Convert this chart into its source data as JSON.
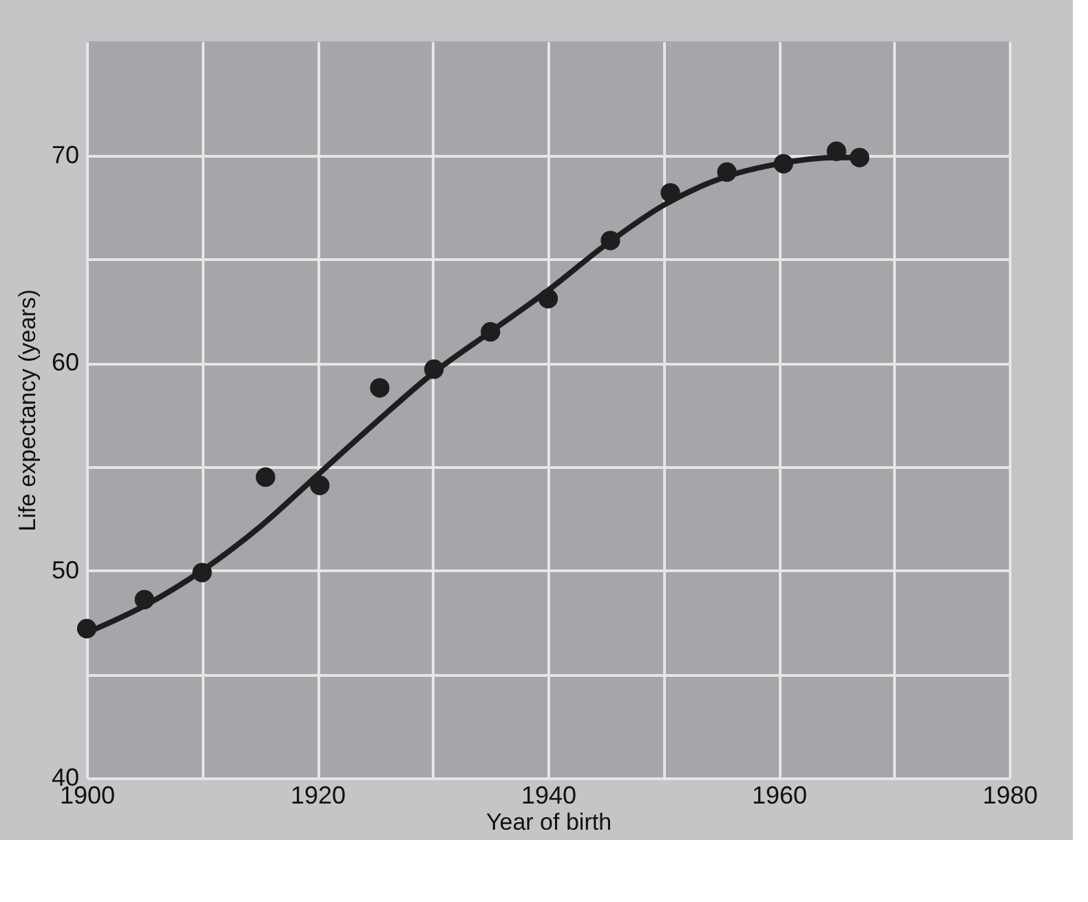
{
  "chart_data": {
    "type": "scatter",
    "xlabel": "Year of birth",
    "ylabel": "Life expectancy (years)",
    "x": [
      1900,
      1905,
      1910,
      1915.5,
      1920.2,
      1925.4,
      1930.1,
      1935,
      1940,
      1945.4,
      1950.6,
      1955.5,
      1960.4,
      1965,
      1967
    ],
    "series": [
      {
        "color": "#1e1e1e",
        "marker": "circle",
        "values": [
          47.2,
          48.6,
          49.9,
          54.5,
          54.1,
          58.8,
          59.7,
          61.5,
          63.1,
          65.9,
          68.2,
          69.2,
          69.6,
          70.2,
          69.9
        ]
      },
      {
        "type": "line",
        "color": "#1e1e1e",
        "line_style": "solid",
        "marker": "none",
        "x": [
          1900,
          1905,
          1910,
          1915,
          1920,
          1925,
          1930,
          1935,
          1940,
          1945,
          1950,
          1955,
          1960,
          1965,
          1967
        ],
        "values": [
          47.0,
          48.3,
          50.0,
          52.1,
          54.6,
          57.1,
          59.5,
          61.5,
          63.5,
          65.7,
          67.6,
          68.9,
          69.6,
          69.9,
          69.9
        ]
      }
    ],
    "xlim": [
      1900,
      1980
    ],
    "xticks": [
      1900,
      {
        "value": 1910,
        "label": null
      },
      1920,
      {
        "value": 1930,
        "label": null
      },
      1940,
      {
        "value": 1950,
        "label": null
      },
      1960,
      {
        "value": 1970,
        "label": null
      },
      1980
    ],
    "ylim": [
      40,
      75.5
    ],
    "yticks": [
      40,
      {
        "value": 45,
        "label": null
      },
      50,
      {
        "value": 55,
        "label": null
      },
      60,
      {
        "value": 65,
        "label": null
      },
      70
    ],
    "grid": true
  }
}
